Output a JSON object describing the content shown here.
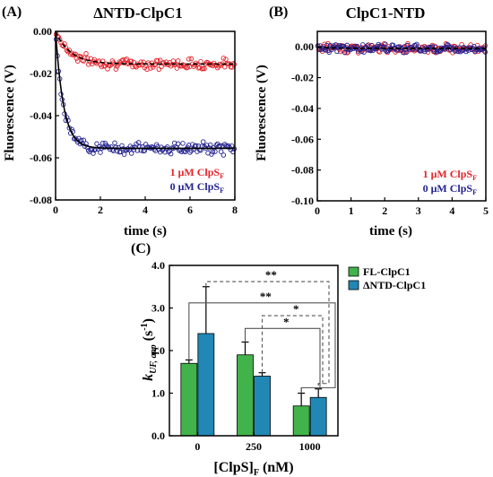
{
  "colors": {
    "red": "#e3242b",
    "blue": "#22228f",
    "green": "#41b34a",
    "teal": "#2188b6",
    "fit": "#000000"
  },
  "chart_data": [
    {
      "panel": "(A)",
      "type": "scatter",
      "title": "ΔNTD-ClpC1",
      "xlabel": "time (s)",
      "ylabel": "Fluorescence (V)",
      "xlim": [
        0,
        8
      ],
      "ylim": [
        -0.08,
        0.0
      ],
      "xticks": [
        "0",
        "2",
        "4",
        "6",
        "8"
      ],
      "yticks": [
        "0.00",
        "-0.02",
        "-0.04",
        "-0.06",
        "-0.08"
      ],
      "legend_position": "bottom-right",
      "series": [
        {
          "name": "1 μM ClpS",
          "sub": "F",
          "color": "red",
          "fit": {
            "style": "dashed",
            "plateau": -0.0155,
            "k": 1.5
          },
          "noise": 0.0035
        },
        {
          "name": "0 μM ClpS",
          "sub": "F",
          "color": "blue",
          "fit": {
            "style": "solid",
            "plateau": -0.0555,
            "k": 2.8
          },
          "noise": 0.004
        }
      ]
    },
    {
      "panel": "(B)",
      "type": "scatter",
      "title": "ClpC1-NTD",
      "xlabel": "time (s)",
      "ylabel": "Fluorescence (V)",
      "xlim": [
        0,
        5
      ],
      "ylim": [
        -0.1,
        0.01
      ],
      "xticks": [
        "0",
        "1",
        "2",
        "3",
        "4",
        "5"
      ],
      "yticks": [
        "0.00",
        "-0.02",
        "-0.04",
        "-0.06",
        "-0.08",
        "-0.10"
      ],
      "legend_position": "bottom-right",
      "series": [
        {
          "name": "1 μM ClpS",
          "sub": "F",
          "color": "red",
          "fit": {
            "style": "dashed",
            "plateau": -0.001,
            "k": 3
          },
          "noise": 0.004
        },
        {
          "name": "0 μM ClpS",
          "sub": "F",
          "color": "blue",
          "fit": {
            "style": "dashed",
            "plateau": -0.001,
            "k": 3
          },
          "noise": 0.004
        }
      ]
    },
    {
      "panel": "(C)",
      "type": "bar",
      "xlabel": "[ClpS]",
      "xlabel_sub": "F",
      "xlabel_unit": " (nM)",
      "ylabel": "k",
      "ylabel_sub": "UF, app",
      "ylabel_unit": " (s",
      "ylabel_sup": "-1",
      "ylabel_close": ")",
      "categories": [
        "0",
        "250",
        "1000"
      ],
      "ylim": [
        0,
        4.0
      ],
      "yticks": [
        "0.0",
        "1.0",
        "2.0",
        "3.0",
        "4.0"
      ],
      "legend_position": "top-right",
      "series": [
        {
          "name": "FL-ClpC1",
          "color": "green",
          "values": [
            1.7,
            1.9,
            0.7
          ],
          "errors": [
            0.08,
            0.3,
            0.3
          ]
        },
        {
          "name": "ΔNTD-ClpC1",
          "color": "teal",
          "values": [
            2.4,
            1.4,
            0.9
          ],
          "errors": [
            1.1,
            0.08,
            0.2
          ]
        }
      ],
      "significance": [
        {
          "label": "**",
          "style": "dashed",
          "series": 1,
          "from": 0,
          "to": 2
        },
        {
          "label": "**",
          "style": "solid",
          "series": 0,
          "from": 0,
          "to": 2
        },
        {
          "label": "*",
          "style": "dashed",
          "series": 1,
          "from": 1,
          "to": 2
        },
        {
          "label": "*",
          "style": "solid",
          "series": 0,
          "from": 1,
          "to": 2
        }
      ]
    }
  ]
}
